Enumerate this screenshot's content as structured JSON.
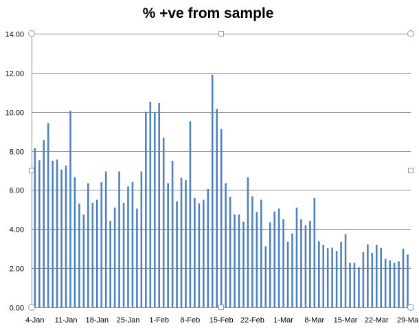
{
  "chart_data": {
    "type": "bar",
    "title": "% +ve from sample",
    "xlabel": "",
    "ylabel": "",
    "ylim": [
      0,
      14
    ],
    "yticks": [
      "0.00",
      "2.00",
      "4.00",
      "6.00",
      "8.00",
      "10.00",
      "12.00",
      "14.00"
    ],
    "x_start": "4-Jan",
    "x_tick_labels": [
      "4-Jan",
      "11-Jan",
      "18-Jan",
      "25-Jan",
      "1-Feb",
      "8-Feb",
      "15-Feb",
      "22-Feb",
      "1-Mar",
      "8-Mar",
      "15-Mar",
      "22-Mar",
      "29-Ma"
    ],
    "grid": true,
    "legend": "none",
    "bar_color": "#4f81bd",
    "values": [
      8.15,
      7.52,
      8.55,
      9.42,
      7.5,
      7.56,
      7.05,
      7.25,
      10.05,
      6.65,
      5.3,
      4.75,
      6.35,
      5.35,
      5.5,
      6.4,
      6.95,
      4.42,
      5.1,
      6.95,
      5.35,
      6.18,
      6.4,
      5.05,
      6.95,
      10.0,
      10.52,
      10.0,
      10.45,
      8.68,
      6.35,
      7.5,
      5.42,
      6.63,
      6.5,
      9.52,
      5.6,
      5.32,
      5.5,
      6.05,
      11.9,
      10.15,
      9.12,
      6.35,
      5.65,
      4.75,
      4.75,
      4.38,
      6.65,
      5.68,
      4.88,
      5.5,
      3.12,
      4.35,
      4.9,
      5.05,
      4.5,
      3.35,
      3.78,
      5.1,
      4.5,
      4.2,
      4.42,
      5.6,
      3.38,
      3.2,
      3.02,
      3.05,
      2.88,
      3.35,
      3.75,
      2.28,
      2.28,
      2.05,
      2.82,
      3.22,
      2.78,
      3.2,
      3.03,
      2.48,
      2.4,
      2.28,
      2.35,
      3.0,
      2.7
    ]
  }
}
